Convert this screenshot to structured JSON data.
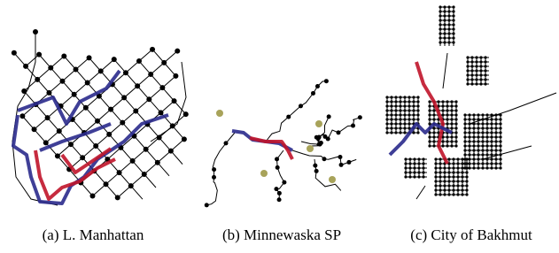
{
  "figure": {
    "captions": [
      "(a) L. Manhattan",
      "(b) Minnewaska SP",
      "(c) City of Bakhmut"
    ]
  }
}
